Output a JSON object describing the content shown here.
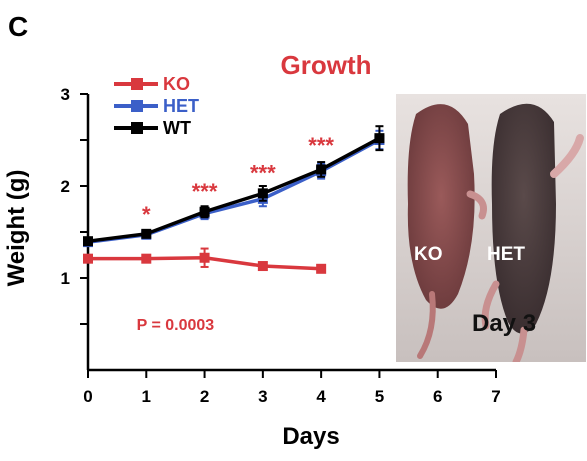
{
  "panel_label": "C",
  "colors": {
    "ko": "#d9383e",
    "het": "#3b5fc8",
    "wt": "#000000",
    "axis": "#000000"
  },
  "photo": {
    "ko_label": "KO",
    "het_label": "HET",
    "day_label": "Day 3"
  },
  "chart_data": {
    "type": "line",
    "title": "Growth",
    "xlabel": "Days",
    "ylabel": "Weight (g)",
    "xlim": [
      0,
      7
    ],
    "ylim": [
      0,
      3
    ],
    "xticks": [
      "0",
      "1",
      "2",
      "3",
      "4",
      "5",
      "6",
      "7"
    ],
    "yticks": [
      "1",
      "2",
      "3"
    ],
    "legend_position": "top-left",
    "series": [
      {
        "name": "KO",
        "color": "#d9383e",
        "x": [
          0,
          1,
          2,
          3,
          4
        ],
        "y": [
          1.21,
          1.21,
          1.22,
          1.13,
          1.1
        ],
        "err": [
          0.02,
          0.02,
          0.1,
          0.02,
          0.02
        ]
      },
      {
        "name": "HET",
        "color": "#3b5fc8",
        "x": [
          0,
          1,
          2,
          3,
          4,
          5
        ],
        "y": [
          1.39,
          1.47,
          1.7,
          1.86,
          2.16,
          2.5
        ],
        "err": [
          0.03,
          0.03,
          0.06,
          0.08,
          0.08,
          0.1
        ]
      },
      {
        "name": "WT",
        "color": "#000000",
        "x": [
          0,
          1,
          2,
          3,
          4,
          5
        ],
        "y": [
          1.4,
          1.48,
          1.72,
          1.92,
          2.18,
          2.52
        ],
        "err": [
          0.03,
          0.03,
          0.06,
          0.08,
          0.08,
          0.13
        ]
      }
    ],
    "annotations": [
      {
        "text": "*",
        "x": 1,
        "y": 1.72
      },
      {
        "text": "***",
        "x": 2,
        "y": 1.97
      },
      {
        "text": "***",
        "x": 3,
        "y": 2.17
      },
      {
        "text": "***",
        "x": 4,
        "y": 2.47
      },
      {
        "text": "P = 0.0003",
        "x": 1.5,
        "y": 0.5
      }
    ]
  }
}
